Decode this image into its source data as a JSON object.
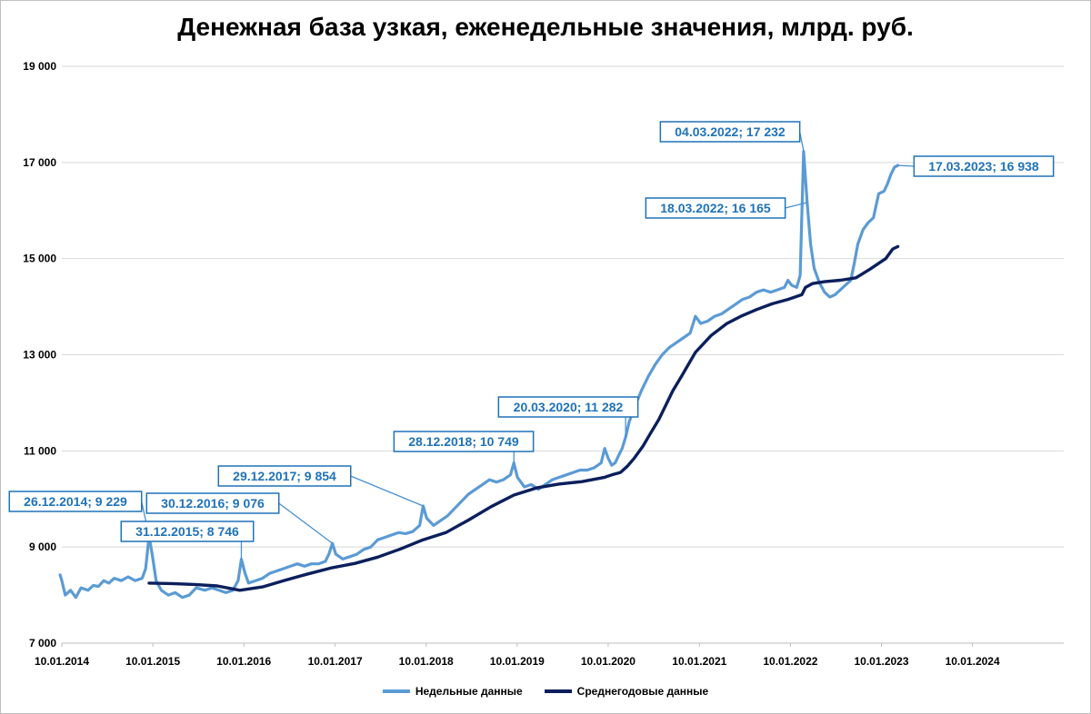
{
  "chart_data": {
    "type": "line",
    "title": "Денежная база узкая, еженедельные значения, млрд. руб.",
    "xlabel": "",
    "ylabel": "",
    "xlim": [
      "2014-01-10",
      "2025-01-10"
    ],
    "ylim": [
      7000,
      19000
    ],
    "y_ticks": [
      7000,
      9000,
      11000,
      13000,
      15000,
      17000,
      19000
    ],
    "y_tick_labels": [
      "7 000",
      "9 000",
      "11 000",
      "13 000",
      "15 000",
      "17 000",
      "19 000"
    ],
    "x_ticks": [
      "2014-01-10",
      "2015-01-10",
      "2016-01-10",
      "2017-01-10",
      "2018-01-10",
      "2019-01-10",
      "2020-01-10",
      "2021-01-10",
      "2022-01-10",
      "2023-01-10",
      "2024-01-10"
    ],
    "x_tick_labels": [
      "10.01.2014",
      "10.01.2015",
      "10.01.2016",
      "10.01.2017",
      "10.01.2018",
      "10.01.2019",
      "10.01.2020",
      "10.01.2021",
      "10.01.2022",
      "10.01.2023",
      "10.01.2024"
    ],
    "grid": "horizontal",
    "legend_position": "bottom",
    "series": [
      {
        "name": "Недельные данные",
        "color": "#5b9bd5",
        "points": [
          [
            "2014-01-03",
            8420
          ],
          [
            "2014-01-10",
            8300
          ],
          [
            "2014-01-24",
            8000
          ],
          [
            "2014-02-14",
            8100
          ],
          [
            "2014-03-07",
            7950
          ],
          [
            "2014-03-28",
            8150
          ],
          [
            "2014-04-25",
            8100
          ],
          [
            "2014-05-16",
            8200
          ],
          [
            "2014-06-06",
            8180
          ],
          [
            "2014-06-27",
            8300
          ],
          [
            "2014-07-18",
            8250
          ],
          [
            "2014-08-08",
            8350
          ],
          [
            "2014-09-05",
            8300
          ],
          [
            "2014-10-03",
            8380
          ],
          [
            "2014-10-31",
            8300
          ],
          [
            "2014-11-28",
            8350
          ],
          [
            "2014-12-12",
            8550
          ],
          [
            "2014-12-26",
            9229
          ],
          [
            "2015-01-09",
            8800
          ],
          [
            "2015-01-23",
            8300
          ],
          [
            "2015-02-13",
            8100
          ],
          [
            "2015-03-13",
            8000
          ],
          [
            "2015-04-10",
            8050
          ],
          [
            "2015-05-08",
            7950
          ],
          [
            "2015-06-05",
            8000
          ],
          [
            "2015-07-03",
            8150
          ],
          [
            "2015-08-07",
            8100
          ],
          [
            "2015-09-04",
            8150
          ],
          [
            "2015-10-02",
            8100
          ],
          [
            "2015-10-30",
            8050
          ],
          [
            "2015-11-27",
            8100
          ],
          [
            "2015-12-18",
            8300
          ],
          [
            "2015-12-31",
            8746
          ],
          [
            "2016-01-15",
            8450
          ],
          [
            "2016-01-29",
            8250
          ],
          [
            "2016-02-26",
            8300
          ],
          [
            "2016-03-25",
            8350
          ],
          [
            "2016-04-22",
            8450
          ],
          [
            "2016-05-20",
            8500
          ],
          [
            "2016-06-17",
            8550
          ],
          [
            "2016-07-15",
            8600
          ],
          [
            "2016-08-12",
            8650
          ],
          [
            "2016-09-09",
            8600
          ],
          [
            "2016-10-07",
            8650
          ],
          [
            "2016-11-04",
            8650
          ],
          [
            "2016-12-02",
            8700
          ],
          [
            "2016-12-16",
            8850
          ],
          [
            "2016-12-30",
            9076
          ],
          [
            "2017-01-13",
            8850
          ],
          [
            "2017-02-10",
            8750
          ],
          [
            "2017-03-10",
            8800
          ],
          [
            "2017-04-07",
            8850
          ],
          [
            "2017-05-05",
            8950
          ],
          [
            "2017-06-02",
            9000
          ],
          [
            "2017-06-30",
            9150
          ],
          [
            "2017-07-28",
            9200
          ],
          [
            "2017-08-25",
            9250
          ],
          [
            "2017-09-22",
            9300
          ],
          [
            "2017-10-20",
            9280
          ],
          [
            "2017-11-17",
            9320
          ],
          [
            "2017-12-15",
            9450
          ],
          [
            "2017-12-29",
            9854
          ],
          [
            "2018-01-12",
            9600
          ],
          [
            "2018-02-09",
            9450
          ],
          [
            "2018-03-09",
            9550
          ],
          [
            "2018-04-06",
            9650
          ],
          [
            "2018-05-04",
            9800
          ],
          [
            "2018-06-01",
            9950
          ],
          [
            "2018-06-29",
            10100
          ],
          [
            "2018-07-27",
            10200
          ],
          [
            "2018-08-24",
            10300
          ],
          [
            "2018-09-21",
            10400
          ],
          [
            "2018-10-19",
            10350
          ],
          [
            "2018-11-16",
            10400
          ],
          [
            "2018-12-14",
            10500
          ],
          [
            "2018-12-28",
            10749
          ],
          [
            "2019-01-11",
            10450
          ],
          [
            "2019-02-08",
            10250
          ],
          [
            "2019-03-08",
            10300
          ],
          [
            "2019-04-05",
            10200
          ],
          [
            "2019-05-03",
            10300
          ],
          [
            "2019-05-31",
            10400
          ],
          [
            "2019-06-28",
            10450
          ],
          [
            "2019-07-26",
            10500
          ],
          [
            "2019-08-23",
            10550
          ],
          [
            "2019-09-20",
            10600
          ],
          [
            "2019-10-18",
            10600
          ],
          [
            "2019-11-15",
            10650
          ],
          [
            "2019-12-13",
            10750
          ],
          [
            "2019-12-27",
            11050
          ],
          [
            "2020-01-10",
            10850
          ],
          [
            "2020-01-24",
            10700
          ],
          [
            "2020-02-07",
            10750
          ],
          [
            "2020-02-21",
            10900
          ],
          [
            "2020-03-06",
            11050
          ],
          [
            "2020-03-20",
            11282
          ],
          [
            "2020-04-03",
            11600
          ],
          [
            "2020-04-24",
            11900
          ],
          [
            "2020-05-22",
            12250
          ],
          [
            "2020-06-19",
            12550
          ],
          [
            "2020-07-17",
            12800
          ],
          [
            "2020-08-14",
            13000
          ],
          [
            "2020-09-11",
            13150
          ],
          [
            "2020-10-09",
            13250
          ],
          [
            "2020-11-06",
            13350
          ],
          [
            "2020-12-04",
            13450
          ],
          [
            "2020-12-25",
            13800
          ],
          [
            "2021-01-15",
            13650
          ],
          [
            "2021-02-12",
            13700
          ],
          [
            "2021-03-12",
            13800
          ],
          [
            "2021-04-09",
            13850
          ],
          [
            "2021-05-07",
            13950
          ],
          [
            "2021-06-04",
            14050
          ],
          [
            "2021-07-02",
            14150
          ],
          [
            "2021-07-30",
            14200
          ],
          [
            "2021-08-27",
            14300
          ],
          [
            "2021-09-24",
            14350
          ],
          [
            "2021-10-22",
            14300
          ],
          [
            "2021-11-19",
            14350
          ],
          [
            "2021-12-17",
            14400
          ],
          [
            "2021-12-31",
            14550
          ],
          [
            "2022-01-14",
            14450
          ],
          [
            "2022-02-04",
            14400
          ],
          [
            "2022-02-18",
            14650
          ],
          [
            "2022-03-04",
            17232
          ],
          [
            "2022-03-18",
            16165
          ],
          [
            "2022-04-01",
            15300
          ],
          [
            "2022-04-15",
            14800
          ],
          [
            "2022-05-06",
            14500
          ],
          [
            "2022-05-27",
            14300
          ],
          [
            "2022-06-17",
            14200
          ],
          [
            "2022-07-08",
            14250
          ],
          [
            "2022-07-29",
            14350
          ],
          [
            "2022-08-19",
            14450
          ],
          [
            "2022-09-09",
            14550
          ],
          [
            "2022-09-23",
            14900
          ],
          [
            "2022-10-07",
            15300
          ],
          [
            "2022-10-28",
            15600
          ],
          [
            "2022-11-18",
            15750
          ],
          [
            "2022-12-09",
            15850
          ],
          [
            "2022-12-30",
            16350
          ],
          [
            "2023-01-20",
            16400
          ],
          [
            "2023-02-03",
            16550
          ],
          [
            "2023-02-17",
            16750
          ],
          [
            "2023-03-03",
            16900
          ],
          [
            "2023-03-17",
            16938
          ]
        ]
      },
      {
        "name": "Среднегодовые данные",
        "color": "#0b1f5c",
        "points": [
          [
            "2014-12-26",
            8250
          ],
          [
            "2015-03-27",
            8240
          ],
          [
            "2015-06-26",
            8220
          ],
          [
            "2015-09-25",
            8190
          ],
          [
            "2015-12-25",
            8100
          ],
          [
            "2016-03-25",
            8170
          ],
          [
            "2016-06-24",
            8310
          ],
          [
            "2016-09-23",
            8440
          ],
          [
            "2016-12-30",
            8570
          ],
          [
            "2017-03-31",
            8660
          ],
          [
            "2017-06-30",
            8790
          ],
          [
            "2017-09-29",
            8960
          ],
          [
            "2017-12-29",
            9150
          ],
          [
            "2018-03-30",
            9300
          ],
          [
            "2018-06-29",
            9560
          ],
          [
            "2018-09-28",
            9840
          ],
          [
            "2018-12-28",
            10080
          ],
          [
            "2019-03-29",
            10230
          ],
          [
            "2019-06-28",
            10310
          ],
          [
            "2019-09-27",
            10360
          ],
          [
            "2019-12-27",
            10450
          ],
          [
            "2020-01-24",
            10500
          ],
          [
            "2020-02-28",
            10550
          ],
          [
            "2020-03-27",
            10680
          ],
          [
            "2020-04-24",
            10850
          ],
          [
            "2020-05-29",
            11100
          ],
          [
            "2020-06-26",
            11350
          ],
          [
            "2020-07-31",
            11650
          ],
          [
            "2020-08-28",
            11950
          ],
          [
            "2020-09-25",
            12250
          ],
          [
            "2020-10-30",
            12550
          ],
          [
            "2020-11-27",
            12800
          ],
          [
            "2020-12-25",
            13050
          ],
          [
            "2021-02-26",
            13400
          ],
          [
            "2021-04-30",
            13650
          ],
          [
            "2021-06-25",
            13800
          ],
          [
            "2021-08-27",
            13940
          ],
          [
            "2021-10-29",
            14060
          ],
          [
            "2021-12-31",
            14150
          ],
          [
            "2022-02-25",
            14250
          ],
          [
            "2022-03-11",
            14400
          ],
          [
            "2022-04-08",
            14480
          ],
          [
            "2022-05-27",
            14520
          ],
          [
            "2022-07-29",
            14550
          ],
          [
            "2022-09-30",
            14600
          ],
          [
            "2022-11-25",
            14780
          ],
          [
            "2023-01-27",
            15000
          ],
          [
            "2023-02-24",
            15200
          ],
          [
            "2023-03-17",
            15250
          ]
        ]
      }
    ],
    "annotations": [
      {
        "label": "26.12.2014; 9 229",
        "date": "2014-12-26",
        "value": 9229
      },
      {
        "label": "31.12.2015; 8 746",
        "date": "2015-12-31",
        "value": 8746
      },
      {
        "label": "30.12.2016; 9 076",
        "date": "2016-12-30",
        "value": 9076
      },
      {
        "label": "29.12.2017; 9 854",
        "date": "2017-12-29",
        "value": 9854
      },
      {
        "label": "28.12.2018; 10 749",
        "date": "2018-12-28",
        "value": 10749
      },
      {
        "label": "20.03.2020; 11 282",
        "date": "2020-03-20",
        "value": 11282
      },
      {
        "label": "04.03.2022; 17 232",
        "date": "2022-03-04",
        "value": 17232
      },
      {
        "label": "18.03.2022; 16 165",
        "date": "2022-03-18",
        "value": 16165
      },
      {
        "label": "17.03.2023; 16 938",
        "date": "2023-03-17",
        "value": 16938
      }
    ]
  }
}
